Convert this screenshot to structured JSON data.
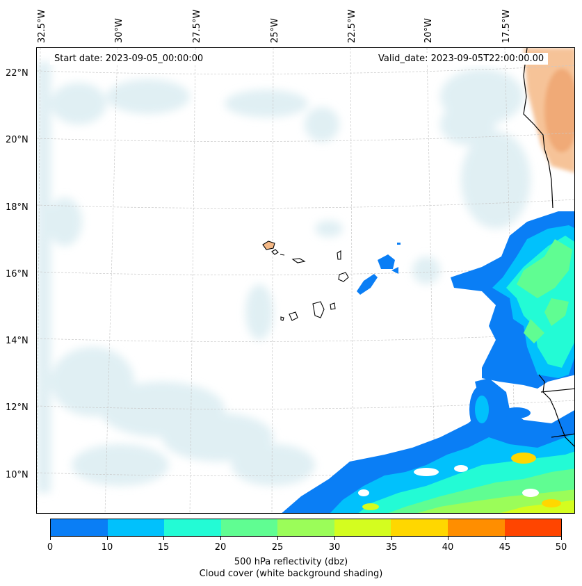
{
  "map": {
    "start_date": "Start date: 2023-09-05_00:00:00",
    "valid_date": "Valid_date: 2023-09-05T22:00:00.00",
    "lon_labels": [
      "32.5°W",
      "30°W",
      "27.5°W",
      "25°W",
      "22.5°W",
      "20°W",
      "17.5°W"
    ],
    "lat_labels": [
      "22°N",
      "20°N",
      "18°N",
      "16°N",
      "14°N",
      "12°N",
      "10°N"
    ]
  },
  "colorbar": {
    "ticks": [
      "0",
      "10",
      "15",
      "20",
      "25",
      "30",
      "35",
      "40",
      "45",
      "50"
    ],
    "colors": [
      "#0a7ef5",
      "#01c1fc",
      "#23fbd5",
      "#60fd92",
      "#9bfd59",
      "#d4fd1f",
      "#ffd700",
      "#ff8e00",
      "#ff4500"
    ],
    "title_line1": "500 hPa reflectivity (dbz)",
    "title_line2": "Cloud cover (white background shading)"
  },
  "colors": {
    "cloud_light": "#d6eaf0",
    "land_tan": "#f4b886",
    "coast": "#000000",
    "grid": "#c8c8c8"
  }
}
